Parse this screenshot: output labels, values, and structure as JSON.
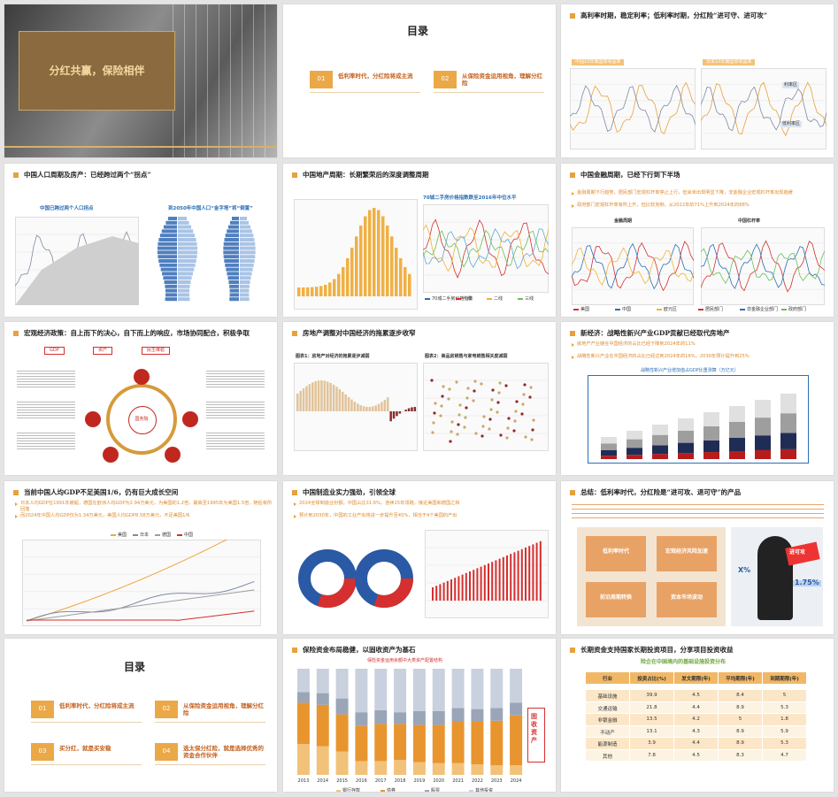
{
  "slides": [
    {
      "title": "分红共赢，保险相伴"
    },
    {
      "title": "目录",
      "items": [
        {
          "number": "01",
          "text": "低利率时代，分红险将成主流"
        },
        {
          "number": "02",
          "text": "从保险资金运用视角，理解分红险"
        }
      ]
    },
    {
      "title": "高利率时期，稳定利率；低利率时期，分红险“进可守、进可攻”",
      "labels": [
        "中国10年期国债收益率",
        "日本10年期国债收益率",
        "利率区",
        "低利率区"
      ]
    },
    {
      "title": "中国人口周期及房产：已经跨过两个“拐点”",
      "labels": [
        "中国已跨过两个人口拐点",
        "到2050年中国人口“金字塔”将“倒置”"
      ]
    },
    {
      "title": "中国地产周期：长期繁荣后的深度调整周期",
      "labels": [
        "70城二手房价格指数跌至2016年中位水平"
      ],
      "legend": [
        "70城二手房价格指数",
        "一线",
        "二线",
        "三线"
      ]
    },
    {
      "title": "中国金融周期，已经下行到下半场",
      "bullets": [
        "金融周期下行趋势，居民部门宏观杠杆率停止上行，但尚未出现明显下降，非金融企业宏观杠杆率出现趋缓",
        "政府部门宏观杠杆率有所上升，但比较克制，从2022年的71%上升到2024年的88%"
      ],
      "labels": [
        "金融周期",
        "中国杠杆率"
      ],
      "legend": [
        "美国",
        "中国",
        "欧元区",
        "居民部门",
        "非金融企业部门",
        "政府部门"
      ]
    },
    {
      "title": "宏观经济政策：自上而下的决心，自下而上的响应，市场协同配合，积极争取",
      "labels": [
        "GDP",
        "资产",
        "民生维稳",
        "国务院"
      ]
    },
    {
      "title": "房地产调整对中国经济的拖累逐步收窄",
      "labels": [
        "图表1：房地产对经济的拖累逐步减弱",
        "图表2：商品房销售与家电销售相关度减弱"
      ]
    },
    {
      "title": "新经济：战略性新兴产业GDP贡献已经取代房地产",
      "bullets": [
        "房地产产业链在中国经济的占比已经下降到2024年的11%",
        "战略性新兴产业在中国经济的占比已经达到2024年的16%，2030年预计提升到25%"
      ],
      "labels": [
        "战略性新兴产业增加值占GDP比重测算（万亿元）"
      ]
    },
    {
      "title": "当前中国人均GDP不足美国1/6，仍有巨大成长空间",
      "bullets": [
        "日本人均GDP在1991年被超，德国在欧洲人均GDP为2.94万美元，为美国的1.2倍，最高至1995年为美国1.5倍，随后有所回落",
        "而2024年中国人均GDP仅为1.34万美元，美国人均GDP8.58万美元，不足美国1/6"
      ],
      "legend": [
        "美国",
        "日本",
        "德国",
        "中国"
      ]
    },
    {
      "title": "中国制造业实力强劲，引领全球",
      "bullets": [
        "2024全球制造业份额，中国占比31.6%，连续15年领跑，接近美国和德国之和",
        "预计到2030年，中国的工业产出将进一步提升至45%，相当于4个美国的产出"
      ]
    },
    {
      "title": "总结：低利率时代，分红险是“进可攻、退可守”的产品",
      "labels": [
        "低利率时代",
        "宏观经济风险加速",
        "前沿周期转换",
        "资本市场波动",
        "X%",
        "进可攻",
        "1.75%"
      ]
    },
    {
      "title": "目录",
      "items": [
        {
          "number": "01",
          "text": "低利率时代，分红险将成主流"
        },
        {
          "number": "02",
          "text": "从保险资金运用视角，理解分红险"
        },
        {
          "number": "03",
          "text": "买分红，就是买安稳"
        },
        {
          "number": "04",
          "text": "选太保分红险，就是选择优秀的资金合作伙伴"
        }
      ]
    },
    {
      "title": "保险资金布局稳健，以固收资产为基石",
      "labels": [
        "保险资金运用余额中大类资产配置结构",
        "固收资产"
      ],
      "chart_data": {
        "type": "bar",
        "stacked": true,
        "categories": [
          "2013",
          "2014",
          "2015",
          "2016",
          "2017",
          "2018",
          "2019",
          "2020",
          "2021",
          "2022",
          "2023",
          "2024"
        ],
        "ylim": [
          0,
          100
        ],
        "series": [
          {
            "name": "银行存款",
            "color": "#f2c27a",
            "values": [
              29,
              27,
              22,
              13,
              13,
              14,
              12,
              11,
              11,
              10,
              9,
              9
            ]
          },
          {
            "name": "债券",
            "color": "#e8952f",
            "values": [
              39,
              39,
              35,
              33,
              35,
              34,
              35,
              36,
              39,
              40,
              42,
              47
            ]
          },
          {
            "name": "股票",
            "color": "#9aa5b8",
            "values": [
              10,
              11,
              15,
              13,
              13,
              11,
              13,
              13,
              13,
              12,
              12,
              12
            ]
          },
          {
            "name": "其他投资",
            "color": "#c9d1de",
            "values": [
              22,
              23,
              28,
              41,
              39,
              41,
              40,
              40,
              37,
              38,
              37,
              32
            ]
          }
        ]
      }
    },
    {
      "title": "长期资金支持国家长期投资项目，分享项目投资收益",
      "labels": [
        "险企在中国境内的基础设施投资分布"
      ],
      "table": {
        "header": [
          "行业",
          "投资占比(%)",
          "发文期限(年)",
          "平均期限(年)",
          "到期期限(年)"
        ],
        "rows": [
          [
            "基础设施",
            39.9,
            4.5,
            8.4,
            5
          ],
          [
            "交通运输",
            21.8,
            4.4,
            8.9,
            5.3
          ],
          [
            "非银金融",
            13.5,
            4.2,
            5,
            1.8
          ],
          [
            "不动产",
            13.1,
            4.3,
            8.9,
            5.9
          ],
          [
            "能源制造",
            3.9,
            4.4,
            8.9,
            5.3
          ],
          [
            "其他",
            7.8,
            4.5,
            8.3,
            4.7
          ]
        ]
      }
    }
  ]
}
